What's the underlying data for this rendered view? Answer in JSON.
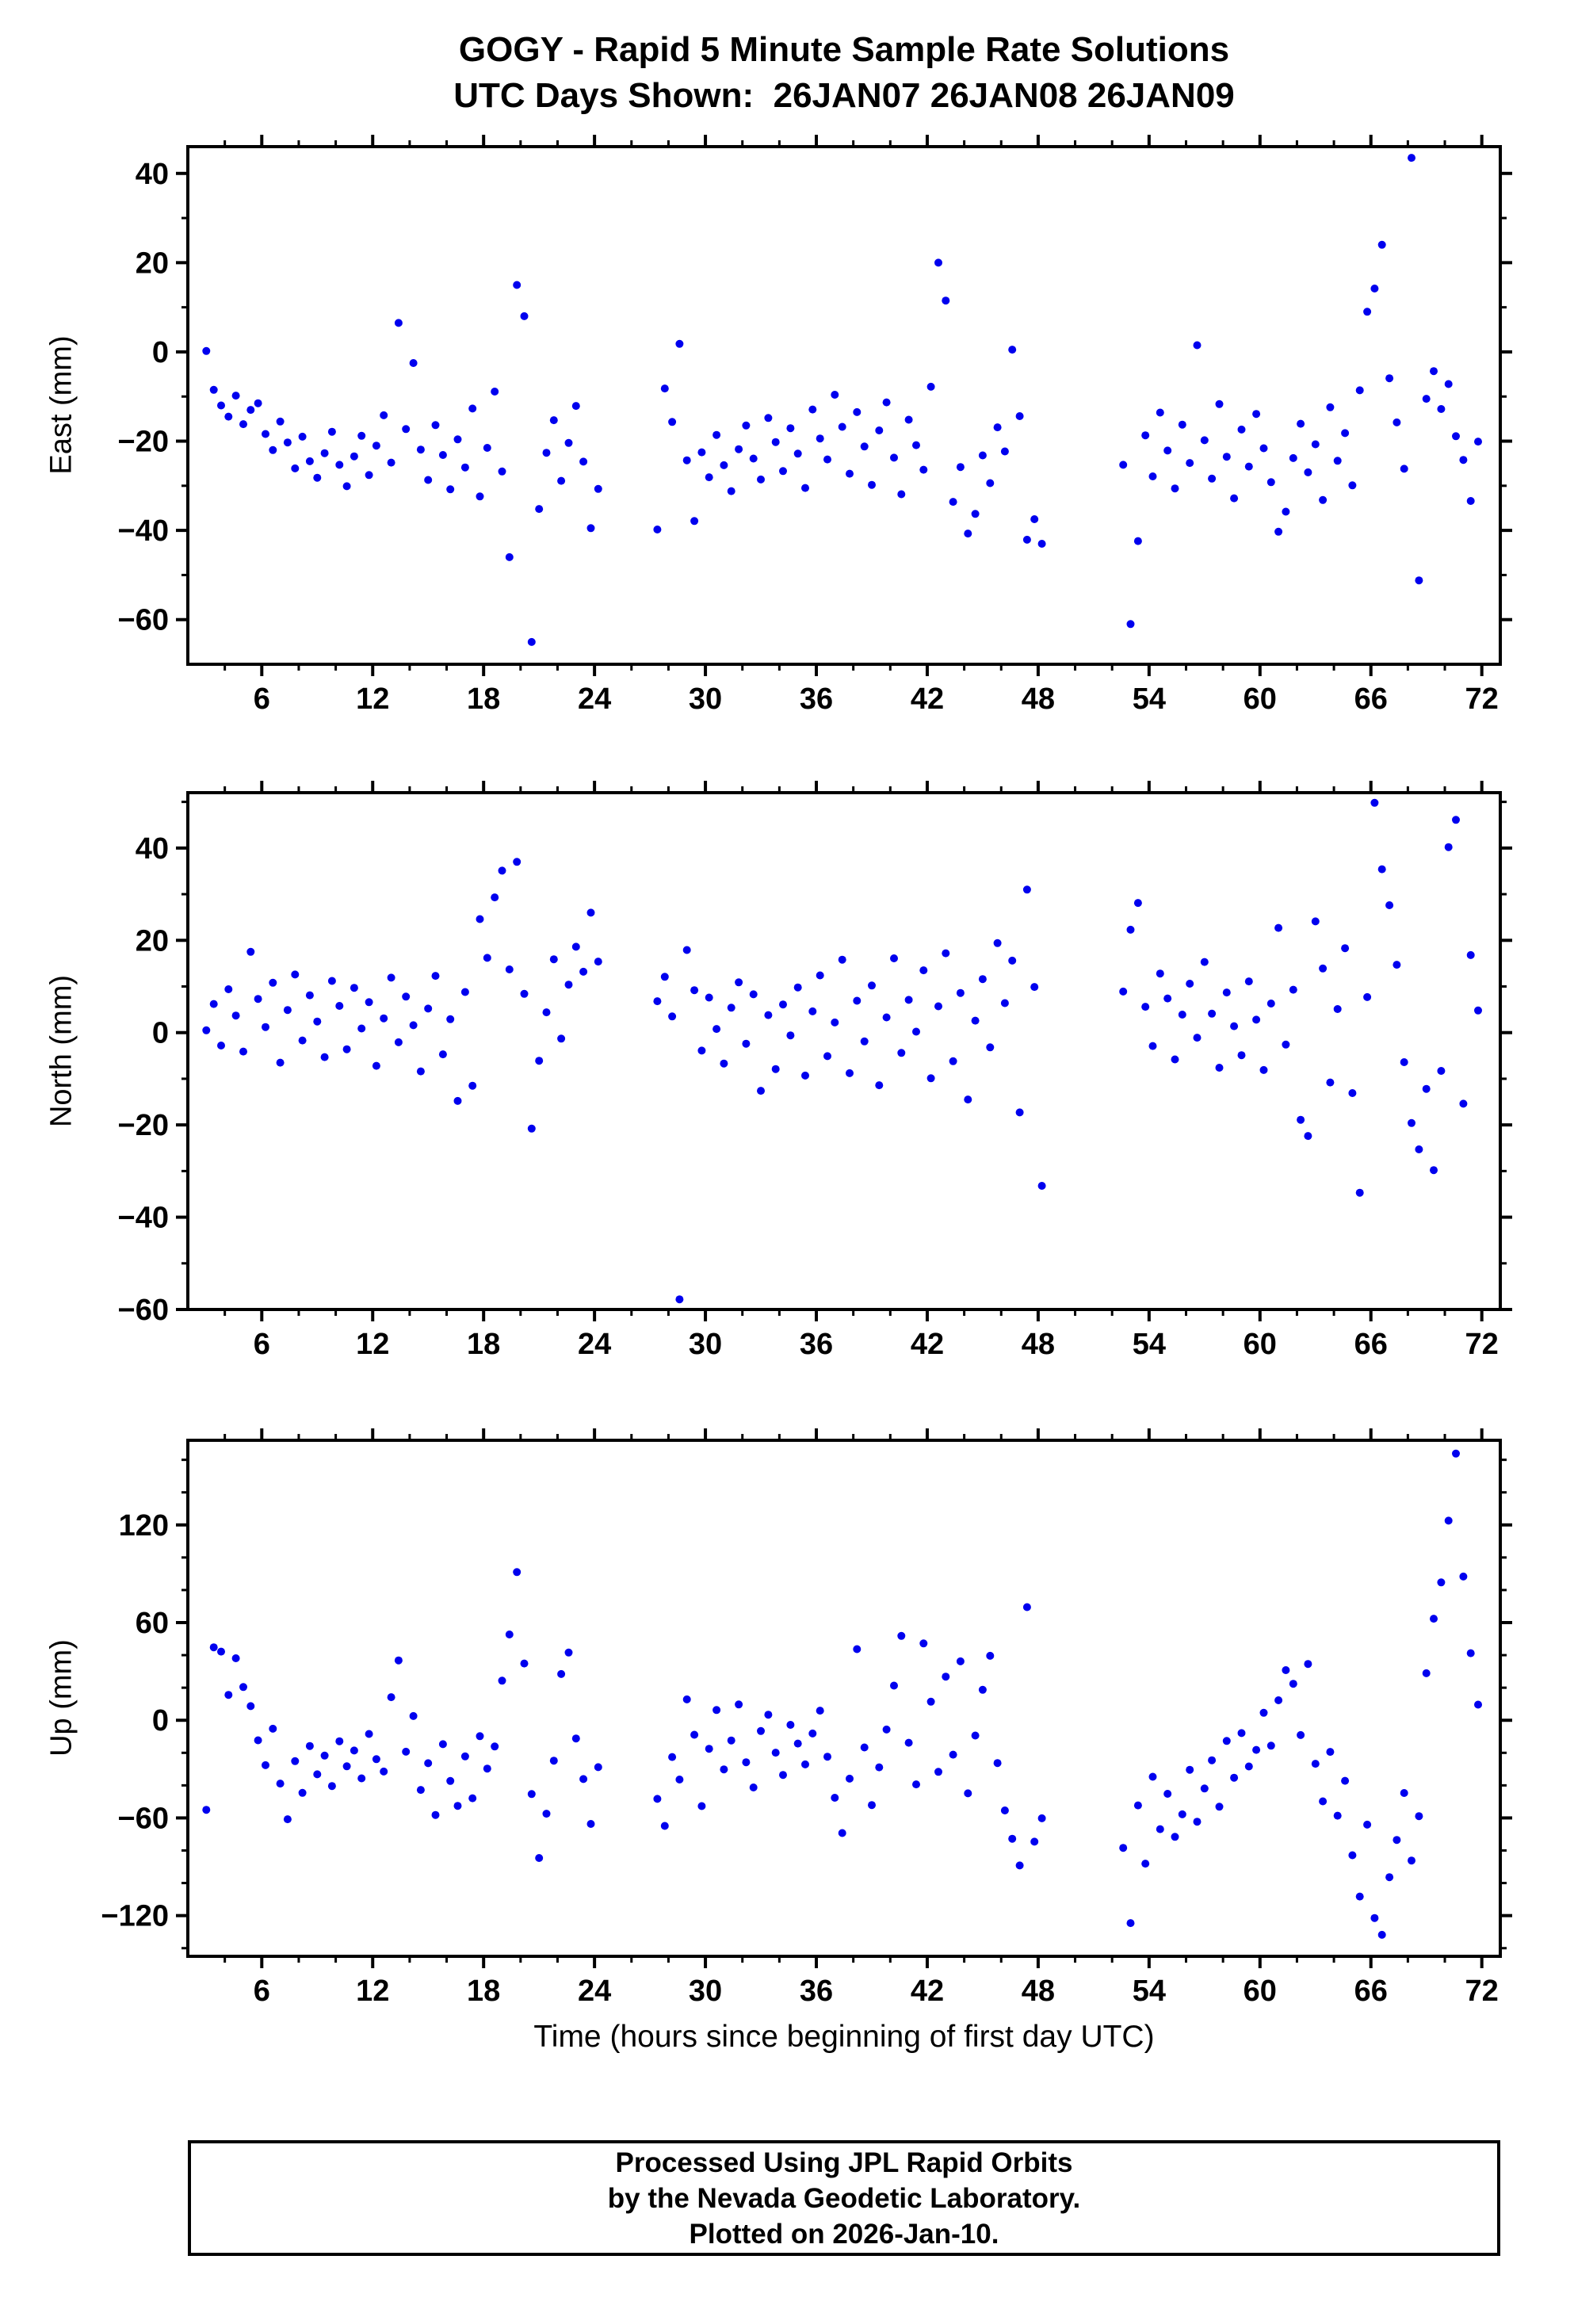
{
  "title": {
    "line1": "GOGY - Rapid 5 Minute Sample Rate Solutions",
    "line2": "UTC Days Shown:  26JAN07 26JAN08 26JAN09"
  },
  "xlabel": "Time (hours since beginning of first day UTC)",
  "footer": {
    "line1": "Processed Using JPL Rapid Orbits",
    "line2": "by the Nevada Geodetic Laboratory.",
    "line3": "Plotted on 2026-Jan-10."
  },
  "chart_data": {
    "type": "scatter",
    "point_color": "#0000EE",
    "frame_color": "#000000",
    "xlim": [
      2,
      73
    ],
    "xticks": [
      6,
      12,
      18,
      24,
      30,
      36,
      42,
      48,
      54,
      60,
      66,
      72
    ],
    "xtick_minor_step": 2,
    "x": [
      3.0,
      3.4,
      3.8,
      4.2,
      4.6,
      5.0,
      5.4,
      5.8,
      6.2,
      6.6,
      7.0,
      7.4,
      7.8,
      8.2,
      8.6,
      9.0,
      9.4,
      9.8,
      10.2,
      10.6,
      11.0,
      11.4,
      11.8,
      12.2,
      12.6,
      13.0,
      13.4,
      13.8,
      14.2,
      14.6,
      15.0,
      15.4,
      15.8,
      16.2,
      16.6,
      17.0,
      17.4,
      17.8,
      18.2,
      18.6,
      19.0,
      19.4,
      19.8,
      20.2,
      20.6,
      21.0,
      21.4,
      21.8,
      22.2,
      22.6,
      23.0,
      23.4,
      23.8,
      24.2,
      27.4,
      27.8,
      28.2,
      28.6,
      29.0,
      29.4,
      29.8,
      30.2,
      30.6,
      31.0,
      31.4,
      31.8,
      32.2,
      32.6,
      33.0,
      33.4,
      33.8,
      34.2,
      34.6,
      35.0,
      35.4,
      35.8,
      36.2,
      36.6,
      37.0,
      37.4,
      37.8,
      38.2,
      38.6,
      39.0,
      39.4,
      39.8,
      40.2,
      40.6,
      41.0,
      41.4,
      41.8,
      42.2,
      42.6,
      43.0,
      43.4,
      43.8,
      44.2,
      44.6,
      45.0,
      45.4,
      45.8,
      46.2,
      46.6,
      47.0,
      47.4,
      47.8,
      48.2,
      52.6,
      53.0,
      53.4,
      53.8,
      54.2,
      54.6,
      55.0,
      55.4,
      55.8,
      56.2,
      56.6,
      57.0,
      57.4,
      57.8,
      58.2,
      58.6,
      59.0,
      59.4,
      59.8,
      60.2,
      60.6,
      61.0,
      61.4,
      61.8,
      62.2,
      62.6,
      63.0,
      63.4,
      63.8,
      64.2,
      64.6,
      65.0,
      65.4,
      65.8,
      66.2,
      66.6,
      67.0,
      67.4,
      67.8,
      68.2,
      68.6,
      69.0,
      69.4,
      69.8,
      70.2,
      70.6,
      71.0,
      71.4,
      71.8
    ],
    "panels": [
      {
        "name": "east",
        "ylabel": "East (mm)",
        "ylim": [
          -70,
          46
        ],
        "yticks": [
          -60,
          -40,
          -20,
          0,
          20,
          40
        ],
        "ytick_minor_step": 10,
        "y": [
          0.2,
          -8.5,
          -12.0,
          -14.5,
          -9.8,
          -16.2,
          -13.0,
          -11.5,
          -18.4,
          -22.0,
          -15.6,
          -20.3,
          -26.1,
          -19.0,
          -24.5,
          -28.2,
          -22.7,
          -17.9,
          -25.3,
          -30.1,
          -23.4,
          -18.8,
          -27.6,
          -21.0,
          -14.2,
          -24.8,
          6.5,
          -17.3,
          -2.5,
          -21.9,
          -28.7,
          -16.4,
          -23.1,
          -30.8,
          -19.6,
          -25.9,
          -12.7,
          -32.4,
          -21.5,
          -8.9,
          -26.8,
          -46.0,
          15.0,
          8.0,
          -65.0,
          -35.2,
          -22.6,
          -15.3,
          -28.9,
          -20.4,
          -12.1,
          -24.6,
          -39.5,
          -30.7,
          -39.8,
          -8.2,
          -15.7,
          1.8,
          -24.3,
          -37.9,
          -22.5,
          -28.1,
          -18.6,
          -25.4,
          -31.2,
          -21.8,
          -16.5,
          -23.9,
          -28.6,
          -14.8,
          -20.2,
          -26.7,
          -17.1,
          -22.8,
          -30.5,
          -12.9,
          -19.4,
          -24.1,
          -9.6,
          -16.8,
          -27.3,
          -13.5,
          -21.2,
          -29.8,
          -17.6,
          -11.3,
          -23.7,
          -31.9,
          -15.2,
          -20.9,
          -26.4,
          -7.8,
          20.0,
          11.5,
          -33.6,
          -25.8,
          -40.7,
          -36.3,
          -23.2,
          -29.4,
          -16.9,
          -22.3,
          0.5,
          -14.4,
          -42.1,
          -37.5,
          -43.0,
          -25.3,
          -61.0,
          -42.4,
          -18.7,
          -27.9,
          -13.6,
          -22.1,
          -30.6,
          -16.3,
          -24.9,
          1.5,
          -19.8,
          -28.4,
          -11.7,
          -23.5,
          -32.8,
          -17.4,
          -25.7,
          -13.9,
          -21.6,
          -29.2,
          -40.3,
          -35.8,
          -23.8,
          -16.1,
          -27.0,
          -20.7,
          -33.2,
          -12.4,
          -24.4,
          -18.2,
          -29.9,
          -8.6,
          9.0,
          14.2,
          24.0,
          -5.9,
          -15.8,
          -26.2,
          43.5,
          -51.2,
          -10.5,
          -4.3,
          -12.8,
          -7.2,
          -18.9,
          -24.2,
          -33.4,
          -20.1
        ]
      },
      {
        "name": "north",
        "ylabel": "North (mm)",
        "ylim": [
          -60,
          52
        ],
        "yticks": [
          -60,
          -40,
          -20,
          0,
          20,
          40
        ],
        "ytick_minor_step": 10,
        "y": [
          0.5,
          6.2,
          -2.8,
          9.4,
          3.7,
          -4.1,
          17.5,
          7.3,
          1.2,
          10.8,
          -6.5,
          4.9,
          12.6,
          -1.7,
          8.1,
          2.4,
          -5.3,
          11.2,
          5.8,
          -3.6,
          9.7,
          0.9,
          6.6,
          -7.2,
          3.1,
          11.9,
          -2.1,
          7.8,
          1.6,
          -8.4,
          5.2,
          12.3,
          -4.7,
          2.9,
          -14.8,
          8.8,
          -11.5,
          24.6,
          16.2,
          29.3,
          35.1,
          13.7,
          37.0,
          8.4,
          -20.8,
          -6.1,
          4.4,
          15.9,
          -1.3,
          10.4,
          18.6,
          13.2,
          26.0,
          15.4,
          6.8,
          12.1,
          3.5,
          -57.8,
          17.9,
          9.2,
          -3.9,
          7.6,
          0.8,
          -6.7,
          5.4,
          10.9,
          -2.4,
          8.3,
          -12.6,
          3.8,
          -7.9,
          6.1,
          -0.6,
          9.8,
          -9.3,
          4.6,
          12.4,
          -5.1,
          2.2,
          15.8,
          -8.8,
          6.9,
          -1.9,
          10.2,
          -11.4,
          3.3,
          16.1,
          -4.4,
          7.1,
          0.2,
          13.5,
          -9.9,
          5.7,
          17.2,
          -6.2,
          8.6,
          -14.5,
          2.6,
          11.6,
          -3.2,
          19.4,
          6.4,
          15.6,
          -17.3,
          31.0,
          9.9,
          -33.2,
          8.9,
          22.3,
          28.1,
          5.6,
          -2.9,
          12.8,
          7.4,
          -5.8,
          3.9,
          10.6,
          -1.1,
          15.3,
          4.1,
          -7.6,
          8.7,
          1.4,
          -4.9,
          11.1,
          2.8,
          -8.1,
          6.3,
          22.7,
          -2.6,
          9.3,
          -18.9,
          -22.4,
          24.1,
          13.9,
          -10.8,
          5.1,
          18.3,
          -13.1,
          -34.7,
          7.7,
          49.8,
          35.4,
          27.6,
          14.7,
          -6.4,
          -19.6,
          -25.3,
          -12.2,
          -29.8,
          -8.3,
          40.2,
          46.1,
          -15.4,
          16.8,
          4.8
        ]
      },
      {
        "name": "up",
        "ylabel": "Up (mm)",
        "ylim": [
          -145,
          172
        ],
        "yticks": [
          -120,
          -60,
          0,
          60,
          120
        ],
        "ytick_minor_step": 20,
        "y": [
          -55.0,
          44.8,
          42.2,
          15.6,
          38.1,
          20.4,
          8.7,
          -12.3,
          -27.6,
          -5.2,
          -38.9,
          -60.8,
          -25.1,
          -44.6,
          -15.8,
          -33.2,
          -21.7,
          -40.4,
          -12.9,
          -28.3,
          -18.6,
          -35.7,
          -8.4,
          -23.9,
          -31.5,
          14.2,
          36.8,
          -19.3,
          2.6,
          -42.8,
          -26.4,
          -58.2,
          -14.7,
          -37.3,
          -52.6,
          -22.2,
          -47.9,
          -9.8,
          -29.7,
          -16.1,
          24.3,
          52.7,
          91.0,
          34.9,
          -45.3,
          -84.6,
          -57.4,
          -24.8,
          28.4,
          41.6,
          -11.2,
          -36.1,
          -63.7,
          -28.8,
          -48.3,
          -64.9,
          -22.6,
          -36.4,
          12.8,
          -8.9,
          -52.7,
          -17.5,
          6.3,
          -30.2,
          -12.4,
          9.7,
          -25.8,
          -41.3,
          -6.6,
          3.4,
          -19.9,
          -33.6,
          -2.8,
          -14.3,
          -27.1,
          -8.1,
          5.9,
          -22.4,
          -47.6,
          -69.3,
          -35.9,
          43.7,
          -16.7,
          -52.1,
          -28.9,
          -5.7,
          21.3,
          51.8,
          -13.8,
          -39.4,
          47.2,
          11.4,
          -31.7,
          26.8,
          -21.1,
          36.2,
          -44.9,
          -9.4,
          18.7,
          39.6,
          -26.3,
          -55.4,
          -72.8,
          -89.2,
          69.5,
          -74.6,
          -60.2,
          -78.4,
          -124.6,
          -52.3,
          -88.1,
          -34.7,
          -66.9,
          -45.2,
          -71.6,
          -57.8,
          -30.4,
          -62.3,
          -41.9,
          -24.6,
          -53.1,
          -12.7,
          -35.3,
          -7.9,
          -28.4,
          -18.2,
          4.6,
          -15.6,
          12.3,
          30.8,
          22.4,
          -9.1,
          34.6,
          -26.7,
          -49.8,
          -19.4,
          -58.6,
          -37.2,
          -82.9,
          -108.3,
          -64.1,
          -121.5,
          -131.8,
          -96.4,
          -73.5,
          -44.7,
          -86.2,
          -58.9,
          28.9,
          62.4,
          84.7,
          122.6,
          163.8,
          88.3,
          41.2,
          9.6
        ]
      }
    ]
  }
}
